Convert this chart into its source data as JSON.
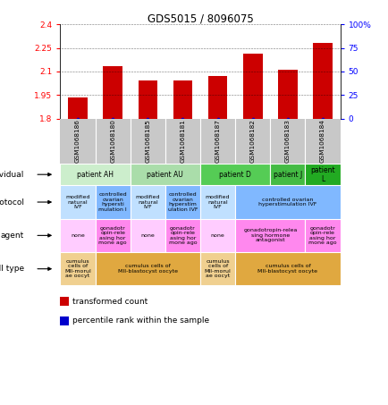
{
  "title": "GDS5015 / 8096075",
  "samples": [
    "GSM1068186",
    "GSM1068180",
    "GSM1068185",
    "GSM1068181",
    "GSM1068187",
    "GSM1068182",
    "GSM1068183",
    "GSM1068184"
  ],
  "transformed_count": [
    1.935,
    2.135,
    2.04,
    2.04,
    2.07,
    2.215,
    2.11,
    2.28
  ],
  "ylim": [
    1.8,
    2.4
  ],
  "yticks": [
    1.8,
    1.95,
    2.1,
    2.25,
    2.4
  ],
  "yticks_right": [
    0,
    25,
    50,
    75,
    100
  ],
  "bar_color": "#cc0000",
  "dot_color": "#0000cc",
  "sample_bg": "#c8c8c8",
  "individual_groups": [
    {
      "label": "patient AH",
      "span": [
        0,
        2
      ],
      "color": "#cceecc"
    },
    {
      "label": "patient AU",
      "span": [
        2,
        4
      ],
      "color": "#aaddaa"
    },
    {
      "label": "patient D",
      "span": [
        4,
        6
      ],
      "color": "#55cc55"
    },
    {
      "label": "patient J",
      "span": [
        6,
        7
      ],
      "color": "#44bb44"
    },
    {
      "label": "patient\nL",
      "span": [
        7,
        8
      ],
      "color": "#22aa22"
    }
  ],
  "protocol_groups": [
    {
      "label": "modified\nnatural\nIVF",
      "span": [
        0,
        1
      ],
      "color": "#c0e0ff"
    },
    {
      "label": "controlled\novarian\nhypersti\nmulation I",
      "span": [
        1,
        2
      ],
      "color": "#80b8ff"
    },
    {
      "label": "modified\nnatural\nIVF",
      "span": [
        2,
        3
      ],
      "color": "#c0e0ff"
    },
    {
      "label": "controlled\novarian\nhyperstim\nulation IVF",
      "span": [
        3,
        4
      ],
      "color": "#80b8ff"
    },
    {
      "label": "modified\nnatural\nIVF",
      "span": [
        4,
        5
      ],
      "color": "#c0e0ff"
    },
    {
      "label": "controlled ovarian\nhyperstimulation IVF",
      "span": [
        5,
        8
      ],
      "color": "#80b8ff"
    }
  ],
  "agent_groups": [
    {
      "label": "none",
      "span": [
        0,
        1
      ],
      "color": "#ffccff"
    },
    {
      "label": "gonadotr\nopin-rele\nasing hor\nmone ago",
      "span": [
        1,
        2
      ],
      "color": "#ff88ee"
    },
    {
      "label": "none",
      "span": [
        2,
        3
      ],
      "color": "#ffccff"
    },
    {
      "label": "gonadotr\nopin-rele\nasing hor\nmone ago",
      "span": [
        3,
        4
      ],
      "color": "#ff88ee"
    },
    {
      "label": "none",
      "span": [
        4,
        5
      ],
      "color": "#ffccff"
    },
    {
      "label": "gonadotropin-relea\nsing hormone\nantagonist",
      "span": [
        5,
        7
      ],
      "color": "#ff88ee"
    },
    {
      "label": "gonadotr\nopin-rele\nasing hor\nmone ago",
      "span": [
        7,
        8
      ],
      "color": "#ff88ee"
    }
  ],
  "celltype_groups": [
    {
      "label": "cumulus\ncells of\nMII-morul\nae oocyt",
      "span": [
        0,
        1
      ],
      "color": "#f0d090"
    },
    {
      "label": "cumulus cells of\nMII-blastocyst oocyte",
      "span": [
        1,
        4
      ],
      "color": "#e0a840"
    },
    {
      "label": "cumulus\ncells of\nMII-morul\nae oocyt",
      "span": [
        4,
        5
      ],
      "color": "#f0d090"
    },
    {
      "label": "cumulus cells of\nMII-blastocyst oocyte",
      "span": [
        5,
        8
      ],
      "color": "#e0a840"
    }
  ],
  "row_labels": [
    "individual",
    "protocol",
    "agent",
    "cell type"
  ],
  "legend": [
    {
      "color": "#cc0000",
      "label": "transformed count"
    },
    {
      "color": "#0000cc",
      "label": "percentile rank within the sample"
    }
  ]
}
